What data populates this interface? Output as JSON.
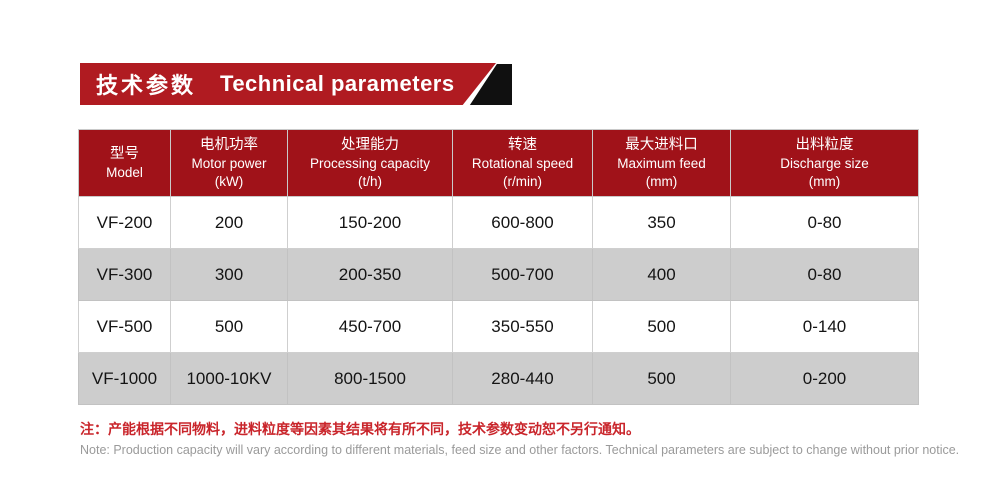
{
  "banner": {
    "title_zh": "技术参数",
    "title_en": "Technical parameters",
    "bg_color": "#b01b21",
    "accent_color": "#101010"
  },
  "table": {
    "header_bg": "#a01219",
    "row_alt_bg": "#cdcdcd",
    "columns": [
      {
        "zh": "型号",
        "en": "Model"
      },
      {
        "zh": "电机功率",
        "en": "Motor power",
        "unit": "(kW)"
      },
      {
        "zh": "处理能力",
        "en": "Processing capacity",
        "unit": "(t/h)"
      },
      {
        "zh": "转速",
        "en": "Rotational speed",
        "unit": "(r/min)"
      },
      {
        "zh": "最大进料口",
        "en": "Maximum feed",
        "unit": "(mm)"
      },
      {
        "zh": "出料粒度",
        "en": "Discharge size",
        "unit": "(mm)"
      }
    ],
    "rows": [
      [
        "VF-200",
        "200",
        "150-200",
        "600-800",
        "350",
        "0-80"
      ],
      [
        "VF-300",
        "300",
        "200-350",
        "500-700",
        "400",
        "0-80"
      ],
      [
        "VF-500",
        "500",
        "450-700",
        "350-550",
        "500",
        "0-140"
      ],
      [
        "VF-1000",
        "1000-10KV",
        "800-1500",
        "280-440",
        "500",
        "0-200"
      ]
    ]
  },
  "notes": {
    "zh": "注：产能根据不同物料，进料粒度等因素其结果将有所不同，技术参数变动恕不另行通知。",
    "en": "Note: Production capacity will vary according to different materials, feed size and other factors. Technical parameters are subject to change without prior notice.",
    "zh_color": "#c9252b",
    "en_color": "#9a9a9a"
  }
}
